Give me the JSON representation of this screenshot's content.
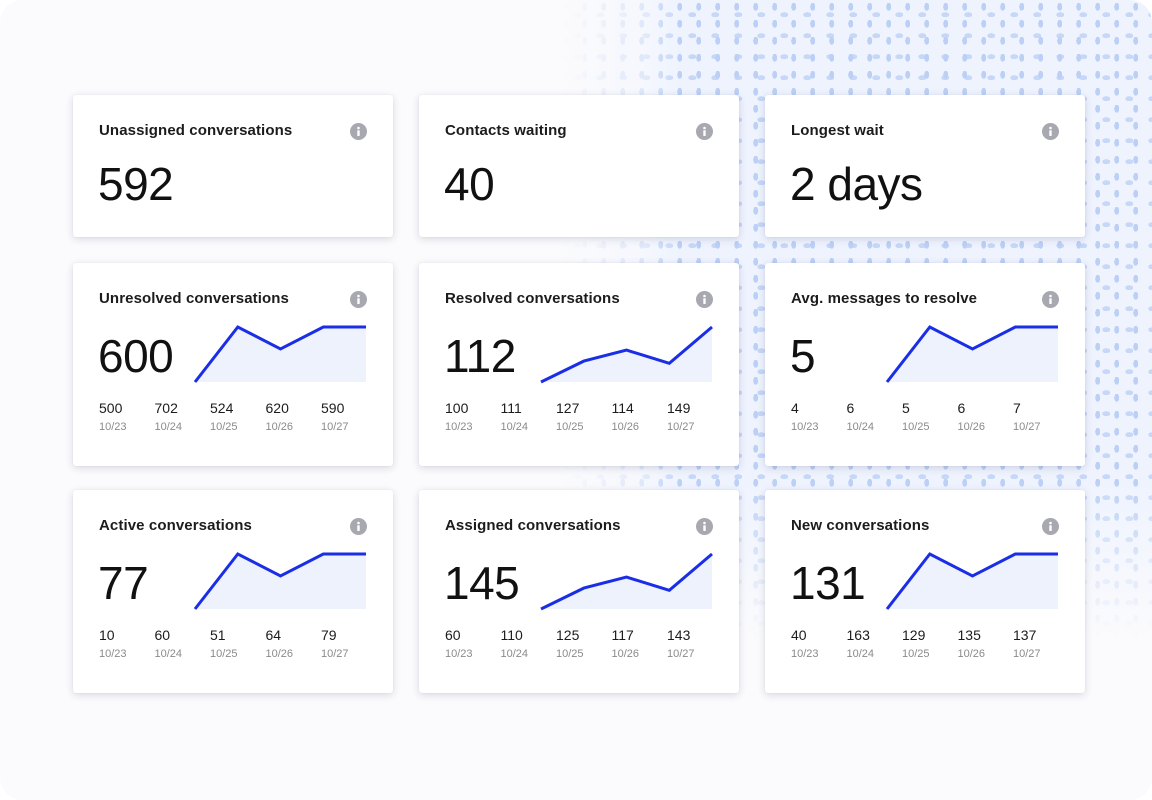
{
  "colors": {
    "accent": "#1a2ee6",
    "fill": "#eef2fd",
    "info_icon": "#a8a8b0"
  },
  "icons": {
    "info": "info-circle-icon"
  },
  "summary_cards": [
    {
      "id": "unassigned",
      "title": "Unassigned conversations",
      "value": "592"
    },
    {
      "id": "contacts-waiting",
      "title": "Contacts waiting",
      "value": "40"
    },
    {
      "id": "longest-wait",
      "title": "Longest wait",
      "value": "2 days"
    }
  ],
  "trend_cards": [
    {
      "id": "unresolved",
      "title": "Unresolved conversations",
      "value": "600",
      "days": [
        {
          "value": 500,
          "date": "10/23"
        },
        {
          "value": 702,
          "date": "10/24"
        },
        {
          "value": 524,
          "date": "10/25"
        },
        {
          "value": 620,
          "date": "10/26"
        },
        {
          "value": 590,
          "date": "10/27"
        }
      ]
    },
    {
      "id": "resolved",
      "title": "Resolved conversations",
      "value": "112",
      "days": [
        {
          "value": 100,
          "date": "10/23"
        },
        {
          "value": 111,
          "date": "10/24"
        },
        {
          "value": 127,
          "date": "10/25"
        },
        {
          "value": 114,
          "date": "10/26"
        },
        {
          "value": 149,
          "date": "10/27"
        }
      ]
    },
    {
      "id": "avg-messages",
      "title": "Avg. messages to resolve",
      "value": "5",
      "days": [
        {
          "value": 4,
          "date": "10/23"
        },
        {
          "value": 6,
          "date": "10/24"
        },
        {
          "value": 5,
          "date": "10/25"
        },
        {
          "value": 6,
          "date": "10/26"
        },
        {
          "value": 7,
          "date": "10/27"
        }
      ]
    },
    {
      "id": "active",
      "title": "Active conversations",
      "value": "77",
      "days": [
        {
          "value": 10,
          "date": "10/23"
        },
        {
          "value": 60,
          "date": "10/24"
        },
        {
          "value": 51,
          "date": "10/25"
        },
        {
          "value": 64,
          "date": "10/26"
        },
        {
          "value": 79,
          "date": "10/27"
        }
      ]
    },
    {
      "id": "assigned",
      "title": "Assigned conversations",
      "value": "145",
      "days": [
        {
          "value": 60,
          "date": "10/23"
        },
        {
          "value": 110,
          "date": "10/24"
        },
        {
          "value": 125,
          "date": "10/25"
        },
        {
          "value": 117,
          "date": "10/26"
        },
        {
          "value": 143,
          "date": "10/27"
        }
      ]
    },
    {
      "id": "new",
      "title": "New conversations",
      "value": "131",
      "days": [
        {
          "value": 40,
          "date": "10/23"
        },
        {
          "value": 163,
          "date": "10/24"
        },
        {
          "value": 129,
          "date": "10/25"
        },
        {
          "value": 135,
          "date": "10/26"
        },
        {
          "value": 137,
          "date": "10/27"
        }
      ]
    }
  ],
  "chart_data": [
    {
      "type": "area",
      "title": "Unresolved conversations",
      "x": [
        "10/23",
        "10/24",
        "10/25",
        "10/26",
        "10/27"
      ],
      "y": [
        500,
        702,
        524,
        620,
        590
      ],
      "sparkline_shape": [
        0,
        1,
        0.6,
        1,
        1
      ]
    },
    {
      "type": "area",
      "title": "Resolved conversations",
      "x": [
        "10/23",
        "10/24",
        "10/25",
        "10/26",
        "10/27"
      ],
      "y": [
        100,
        111,
        127,
        114,
        149
      ],
      "sparkline_shape": [
        0,
        0.38,
        0.58,
        0.34,
        1
      ]
    },
    {
      "type": "area",
      "title": "Avg. messages to resolve",
      "x": [
        "10/23",
        "10/24",
        "10/25",
        "10/26",
        "10/27"
      ],
      "y": [
        4,
        6,
        5,
        6,
        7
      ],
      "sparkline_shape": [
        0,
        1,
        0.6,
        1,
        1
      ]
    },
    {
      "type": "area",
      "title": "Active conversations",
      "x": [
        "10/23",
        "10/24",
        "10/25",
        "10/26",
        "10/27"
      ],
      "y": [
        10,
        60,
        51,
        64,
        79
      ],
      "sparkline_shape": [
        0,
        1,
        0.6,
        1,
        1
      ]
    },
    {
      "type": "area",
      "title": "Assigned conversations",
      "x": [
        "10/23",
        "10/24",
        "10/25",
        "10/26",
        "10/27"
      ],
      "y": [
        60,
        110,
        125,
        117,
        143
      ],
      "sparkline_shape": [
        0,
        0.38,
        0.58,
        0.34,
        1
      ]
    },
    {
      "type": "area",
      "title": "New conversations",
      "x": [
        "10/23",
        "10/24",
        "10/25",
        "10/26",
        "10/27"
      ],
      "y": [
        40,
        163,
        129,
        135,
        137
      ],
      "sparkline_shape": [
        0,
        1,
        0.6,
        1,
        1
      ]
    }
  ]
}
